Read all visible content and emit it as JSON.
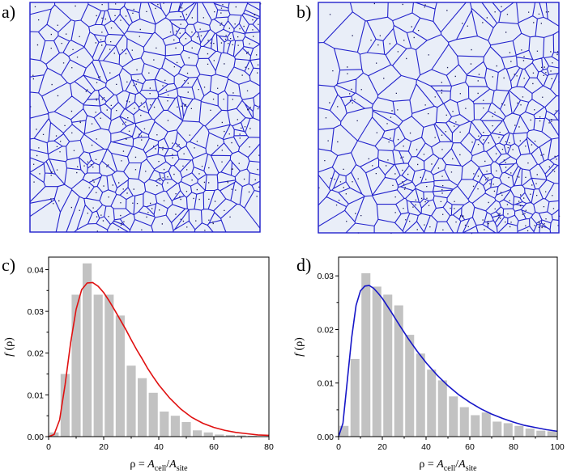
{
  "colors": {
    "voronoi_edge": "#2222cc",
    "voronoi_fill": "#e9eef8",
    "bar": "#c2c2c2",
    "curve_c": "#e01010",
    "curve_d": "#1616c8"
  },
  "panels": {
    "a": {
      "label": "a)",
      "description_icon": "voronoi-tessellation-uniform"
    },
    "b": {
      "label": "b)",
      "description_icon": "voronoi-tessellation-clustered"
    }
  },
  "chart_data": [
    {
      "id": "c",
      "panel_label": "c)",
      "type": "bar",
      "title": "",
      "xlabel": "ρ = A_cell/A_site",
      "xlabel_parts": {
        "prefix": "ρ = ",
        "a1": "A",
        "s1": "cell",
        "slash": "/",
        "a2": "A",
        "s2": "site"
      },
      "ylabel": "f (ρ)",
      "ylabel_parts": {
        "f": "f",
        "rest": " (ρ)"
      },
      "xlim": [
        0,
        80
      ],
      "ylim": [
        0,
        0.043
      ],
      "xticks": [
        0,
        20,
        40,
        60,
        80
      ],
      "xtick_labels": [
        "0",
        "20",
        "40",
        "60",
        "80"
      ],
      "yticks": [
        0,
        0.01,
        0.02,
        0.03,
        0.04
      ],
      "ytick_labels": [
        "0.00",
        "0.01",
        "0.02",
        "0.03",
        "0.04"
      ],
      "bin_width": 4,
      "bin_starts": [
        0,
        4,
        8,
        12,
        16,
        20,
        24,
        28,
        32,
        36,
        40,
        44,
        48,
        52,
        56,
        60,
        64,
        68,
        72,
        76
      ],
      "values": [
        0.001,
        0.015,
        0.034,
        0.0415,
        0.034,
        0.034,
        0.029,
        0.017,
        0.014,
        0.0105,
        0.006,
        0.005,
        0.0035,
        0.0015,
        0.001,
        0.0005,
        0.0004,
        0.0003,
        0.0002,
        0.0001
      ],
      "fit_curve": {
        "type": "line",
        "color_key": "curve_c",
        "x": [
          0,
          2,
          4,
          6,
          8,
          10,
          12,
          14,
          16,
          18,
          20,
          22,
          24,
          26,
          28,
          30,
          32,
          34,
          36,
          38,
          40,
          44,
          48,
          52,
          56,
          60,
          64,
          68,
          72,
          76,
          80
        ],
        "y": [
          0,
          0.0005,
          0.004,
          0.0125,
          0.0225,
          0.0305,
          0.0352,
          0.0368,
          0.0369,
          0.036,
          0.0345,
          0.0325,
          0.0303,
          0.028,
          0.0257,
          0.0232,
          0.0208,
          0.0186,
          0.0163,
          0.0143,
          0.0124,
          0.0092,
          0.0066,
          0.0046,
          0.0032,
          0.0022,
          0.0015,
          0.001,
          0.0007,
          0.0004,
          0.0003
        ]
      }
    },
    {
      "id": "d",
      "panel_label": "d)",
      "type": "bar",
      "title": "",
      "xlabel": "ρ = A_cell/A_site",
      "xlabel_parts": {
        "prefix": "ρ = ",
        "a1": "A",
        "s1": "cell",
        "slash": "/",
        "a2": "A",
        "s2": "site"
      },
      "ylabel": "f (ρ)",
      "ylabel_parts": {
        "f": "f",
        "rest": " (ρ)"
      },
      "xlim": [
        0,
        100
      ],
      "ylim": [
        0,
        0.0335
      ],
      "xticks": [
        0,
        20,
        40,
        60,
        80,
        100
      ],
      "xtick_labels": [
        "0",
        "20",
        "40",
        "60",
        "80",
        "100"
      ],
      "yticks": [
        0,
        0.01,
        0.02,
        0.03
      ],
      "ytick_labels": [
        "0.00",
        "0.01",
        "0.02",
        "0.03"
      ],
      "bin_width": 5,
      "bin_starts": [
        0,
        5,
        10,
        15,
        20,
        25,
        30,
        35,
        40,
        45,
        50,
        55,
        60,
        65,
        70,
        75,
        80,
        85,
        90,
        95
      ],
      "values": [
        0.002,
        0.0145,
        0.0305,
        0.028,
        0.0265,
        0.0245,
        0.019,
        0.0155,
        0.0125,
        0.0105,
        0.0075,
        0.0055,
        0.004,
        0.0045,
        0.0028,
        0.0025,
        0.002,
        0.0015,
        0.0011,
        0.001
      ],
      "fit_curve": {
        "type": "line",
        "color_key": "curve_d",
        "x": [
          0,
          2,
          4,
          6,
          8,
          10,
          12,
          14,
          16,
          18,
          20,
          24,
          28,
          32,
          36,
          40,
          45,
          50,
          55,
          60,
          65,
          70,
          75,
          80,
          85,
          90,
          95,
          100
        ],
        "y": [
          0,
          0.0025,
          0.0105,
          0.0185,
          0.0245,
          0.0272,
          0.0281,
          0.0282,
          0.0277,
          0.0268,
          0.0258,
          0.0233,
          0.0207,
          0.0182,
          0.0159,
          0.0138,
          0.0115,
          0.0095,
          0.0078,
          0.0064,
          0.0052,
          0.0042,
          0.0034,
          0.0027,
          0.0021,
          0.0017,
          0.0013,
          0.001
        ]
      }
    }
  ]
}
